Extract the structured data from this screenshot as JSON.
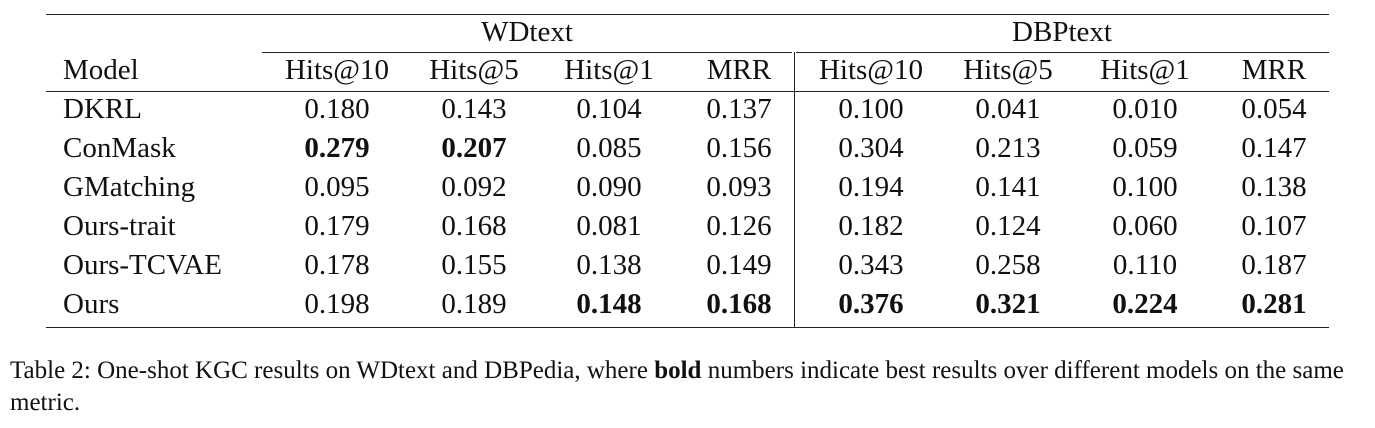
{
  "table": {
    "groups": [
      {
        "label": "WDtext"
      },
      {
        "label": "DBPtext"
      }
    ],
    "model_header": "Model",
    "metric_headers": [
      "Hits@10",
      "Hits@5",
      "Hits@1",
      "MRR",
      "Hits@10",
      "Hits@5",
      "Hits@1",
      "MRR"
    ],
    "rows": [
      {
        "model": "DKRL",
        "values": [
          "0.180",
          "0.143",
          "0.104",
          "0.137",
          "0.100",
          "0.041",
          "0.010",
          "0.054"
        ],
        "bold": [
          false,
          false,
          false,
          false,
          false,
          false,
          false,
          false
        ]
      },
      {
        "model": "ConMask",
        "values": [
          "0.279",
          "0.207",
          "0.085",
          "0.156",
          "0.304",
          "0.213",
          "0.059",
          "0.147"
        ],
        "bold": [
          true,
          true,
          false,
          false,
          false,
          false,
          false,
          false
        ]
      },
      {
        "model": "GMatching",
        "values": [
          "0.095",
          "0.092",
          "0.090",
          "0.093",
          "0.194",
          "0.141",
          "0.100",
          "0.138"
        ],
        "bold": [
          false,
          false,
          false,
          false,
          false,
          false,
          false,
          false
        ]
      },
      {
        "model": "Ours-trait",
        "values": [
          "0.179",
          "0.168",
          "0.081",
          "0.126",
          "0.182",
          "0.124",
          "0.060",
          "0.107"
        ],
        "bold": [
          false,
          false,
          false,
          false,
          false,
          false,
          false,
          false
        ]
      },
      {
        "model": "Ours-TCVAE",
        "values": [
          "0.178",
          "0.155",
          "0.138",
          "0.149",
          "0.343",
          "0.258",
          "0.110",
          "0.187"
        ],
        "bold": [
          false,
          false,
          false,
          false,
          false,
          false,
          false,
          false
        ]
      },
      {
        "model": "Ours",
        "values": [
          "0.198",
          "0.189",
          "0.148",
          "0.168",
          "0.376",
          "0.321",
          "0.224",
          "0.281"
        ],
        "bold": [
          false,
          false,
          true,
          true,
          true,
          true,
          true,
          true
        ]
      }
    ]
  },
  "caption": {
    "prefix": "Table 2: One-shot KGC results on WDtext and DBPedia, where ",
    "bold_word": "bold",
    "suffix": " numbers indicate best results over different models on the same metric."
  }
}
